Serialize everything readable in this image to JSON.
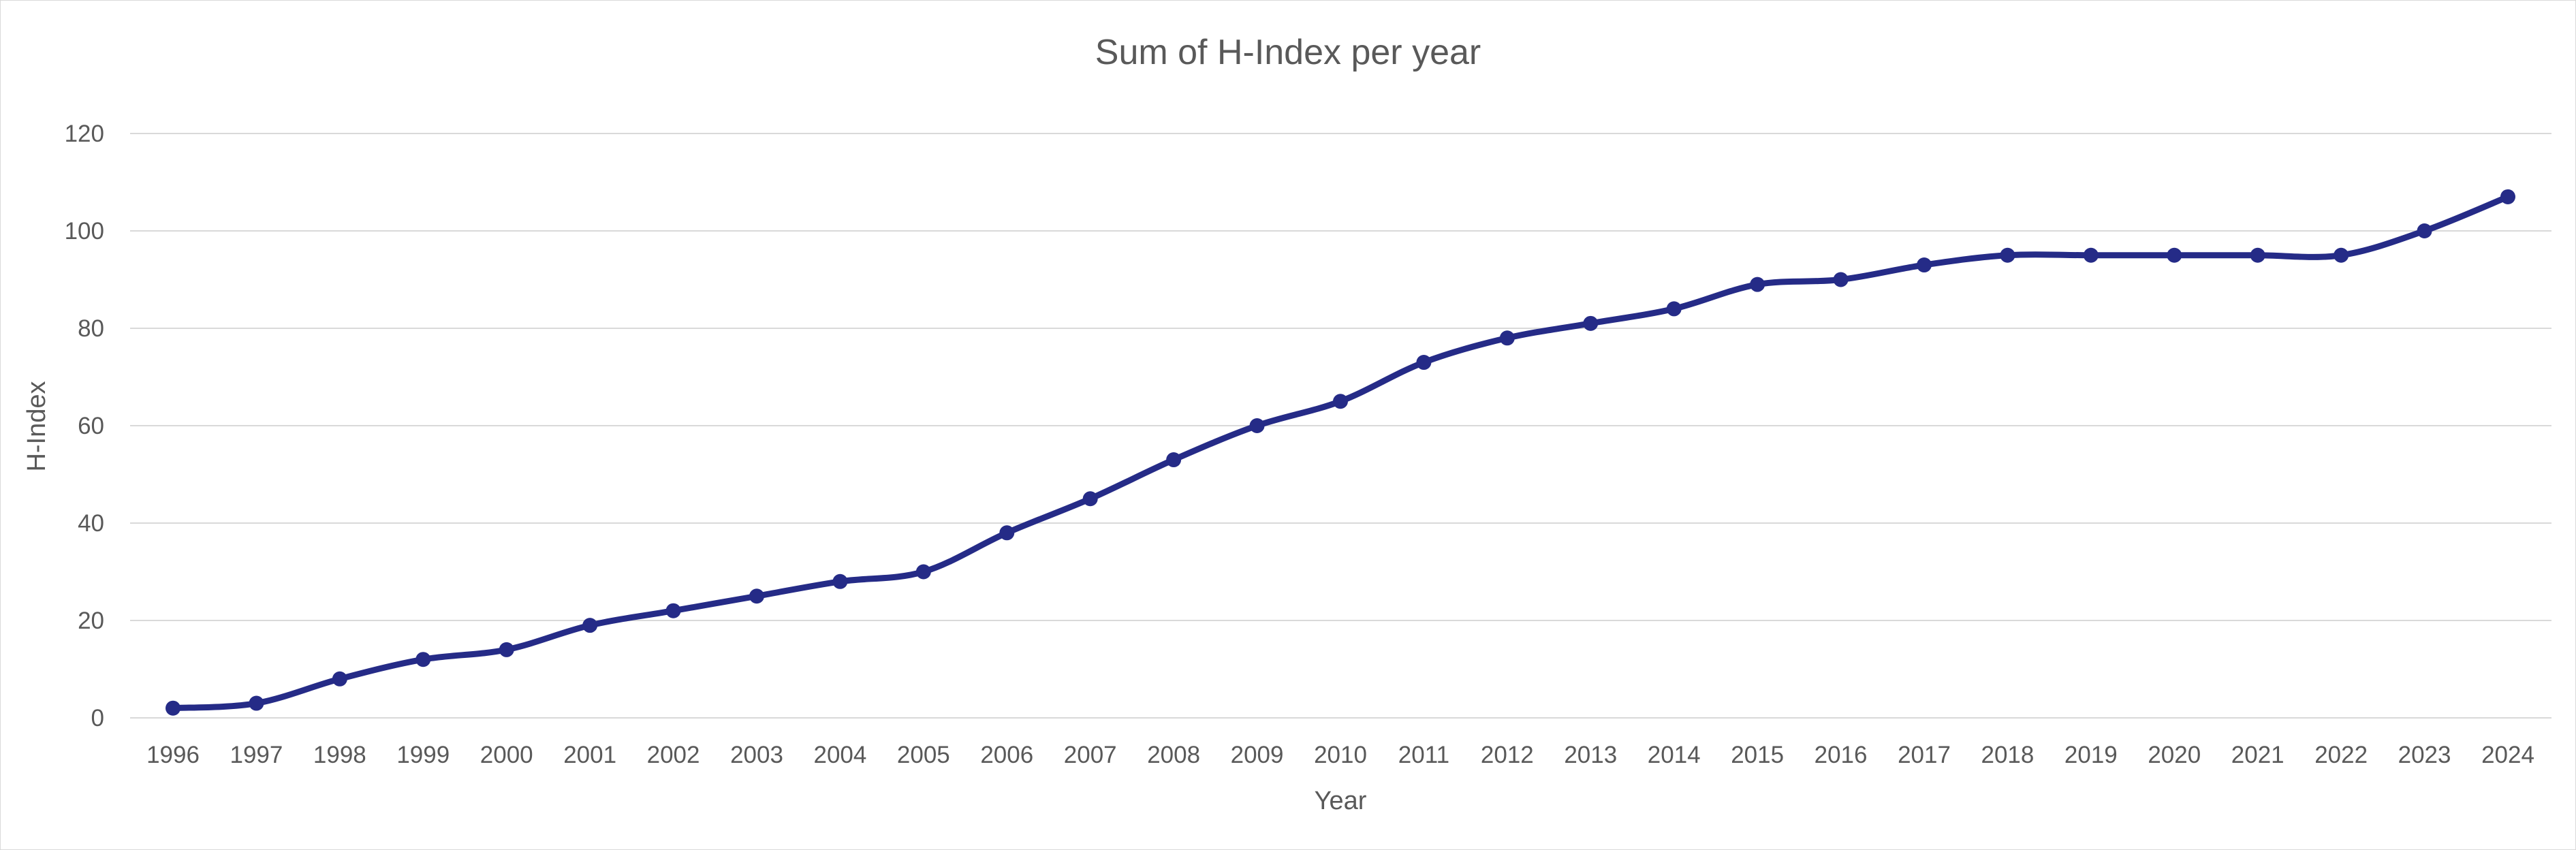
{
  "chart_data": {
    "type": "line",
    "title": "Sum of H-Index per year",
    "xlabel": "Year",
    "ylabel": "H-Index",
    "ylim": [
      0,
      120
    ],
    "yticks": [
      0,
      20,
      40,
      60,
      80,
      100,
      120
    ],
    "grid": true,
    "smooth": true,
    "legend": "none",
    "categories": [
      "1996",
      "1997",
      "1998",
      "1999",
      "2000",
      "2001",
      "2002",
      "2003",
      "2004",
      "2005",
      "2006",
      "2007",
      "2008",
      "2009",
      "2010",
      "2011",
      "2012",
      "2013",
      "2014",
      "2015",
      "2016",
      "2017",
      "2018",
      "2019",
      "2020",
      "2021",
      "2022",
      "2023",
      "2024"
    ],
    "series": [
      {
        "color": "#252b87",
        "values": [
          2,
          3,
          8,
          12,
          14,
          19,
          22,
          25,
          28,
          30,
          38,
          45,
          53,
          60,
          65,
          73,
          78,
          81,
          84,
          89,
          90,
          93,
          95,
          95,
          95,
          95,
          95,
          100,
          107
        ]
      }
    ]
  }
}
